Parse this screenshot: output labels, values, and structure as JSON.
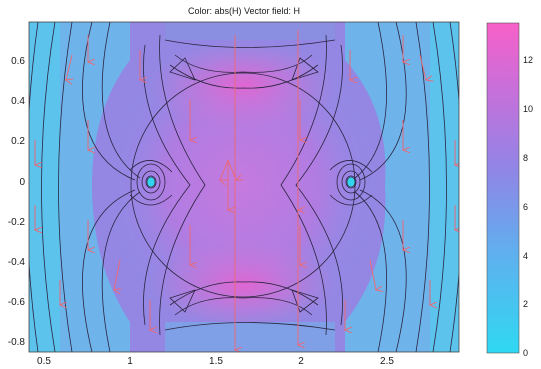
{
  "plot": {
    "title": "Color: abs(H)  Vector field: H",
    "x_ticks": [
      "0.5",
      "1",
      "1.5",
      "2",
      "2.5"
    ],
    "y_ticks": [
      "0.6",
      "0.4",
      "0.2",
      "0",
      "-0.2",
      "-0.4",
      "-0.6",
      "-0.8"
    ],
    "xlim": [
      0.4,
      2.9
    ],
    "ylim": [
      -0.85,
      0.78
    ],
    "colormap": [
      "#3ad3f0",
      "#6fa8ec",
      "#9b82e4",
      "#c96fd8",
      "#f25ec8"
    ]
  },
  "colorbar": {
    "ticks": [
      "0",
      "2",
      "4",
      "6",
      "8",
      "10",
      "12"
    ],
    "range": [
      0,
      13.5
    ]
  },
  "colors": {
    "contour": "#2a2440",
    "arrows": "#e86a7a",
    "background": "#5cc3ec"
  }
}
